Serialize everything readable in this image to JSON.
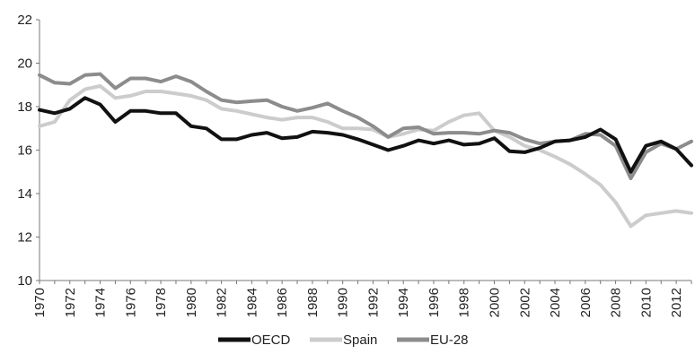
{
  "chart_data": {
    "type": "line",
    "x": [
      1970,
      1971,
      1972,
      1973,
      1974,
      1975,
      1976,
      1977,
      1978,
      1979,
      1980,
      1981,
      1982,
      1983,
      1984,
      1985,
      1986,
      1987,
      1988,
      1989,
      1990,
      1991,
      1992,
      1993,
      1994,
      1995,
      1996,
      1997,
      1998,
      1999,
      2000,
      2001,
      2002,
      2003,
      2004,
      2005,
      2006,
      2007,
      2008,
      2009,
      2010,
      2011,
      2012,
      2013
    ],
    "x_tick_labels": [
      "1970",
      "1972",
      "1974",
      "1976",
      "1978",
      "1980",
      "1982",
      "1984",
      "1986",
      "1988",
      "1990",
      "1992",
      "1994",
      "1996",
      "1998",
      "2000",
      "2002",
      "2004",
      "2006",
      "2008",
      "2010",
      "2012"
    ],
    "y_tick_labels": [
      "10",
      "12",
      "14",
      "16",
      "18",
      "20",
      "22"
    ],
    "ylim": [
      10,
      22
    ],
    "xlim": [
      1970,
      2013
    ],
    "grid": false,
    "legend_position": "bottom",
    "series": [
      {
        "name": "OECD",
        "color": "#111111",
        "values": [
          17.85,
          17.7,
          17.9,
          18.4,
          18.1,
          17.3,
          17.8,
          17.8,
          17.7,
          17.7,
          17.1,
          17.0,
          16.5,
          16.5,
          16.7,
          16.8,
          16.55,
          16.6,
          16.85,
          16.8,
          16.7,
          16.5,
          16.25,
          16.0,
          16.2,
          16.45,
          16.3,
          16.45,
          16.25,
          16.3,
          16.55,
          15.95,
          15.9,
          16.1,
          16.4,
          16.45,
          16.6,
          16.95,
          16.5,
          15.0,
          16.2,
          16.4,
          16.05,
          15.3
        ]
      },
      {
        "name": "Spain",
        "color": "#cccccc",
        "values": [
          17.1,
          17.3,
          18.3,
          18.8,
          18.95,
          18.4,
          18.5,
          18.7,
          18.7,
          18.6,
          18.5,
          18.3,
          17.9,
          17.8,
          17.65,
          17.5,
          17.4,
          17.5,
          17.5,
          17.3,
          17.0,
          17.0,
          16.95,
          16.6,
          16.75,
          16.95,
          16.9,
          17.3,
          17.6,
          17.7,
          16.9,
          16.6,
          16.2,
          16.0,
          15.7,
          15.35,
          14.9,
          14.4,
          13.6,
          12.5,
          13.0,
          13.1,
          13.2,
          13.1
        ]
      },
      {
        "name": "EU-28",
        "color": "#8c8c8c",
        "values": [
          19.45,
          19.1,
          19.05,
          19.45,
          19.5,
          18.85,
          19.3,
          19.3,
          19.15,
          19.4,
          19.15,
          18.7,
          18.3,
          18.2,
          18.25,
          18.3,
          18.0,
          17.8,
          17.95,
          18.15,
          17.8,
          17.5,
          17.1,
          16.6,
          17.0,
          17.05,
          16.75,
          16.8,
          16.8,
          16.75,
          16.9,
          16.8,
          16.5,
          16.3,
          16.4,
          16.45,
          16.75,
          16.7,
          16.2,
          14.7,
          15.9,
          16.3,
          16.05,
          16.4
        ]
      }
    ]
  }
}
